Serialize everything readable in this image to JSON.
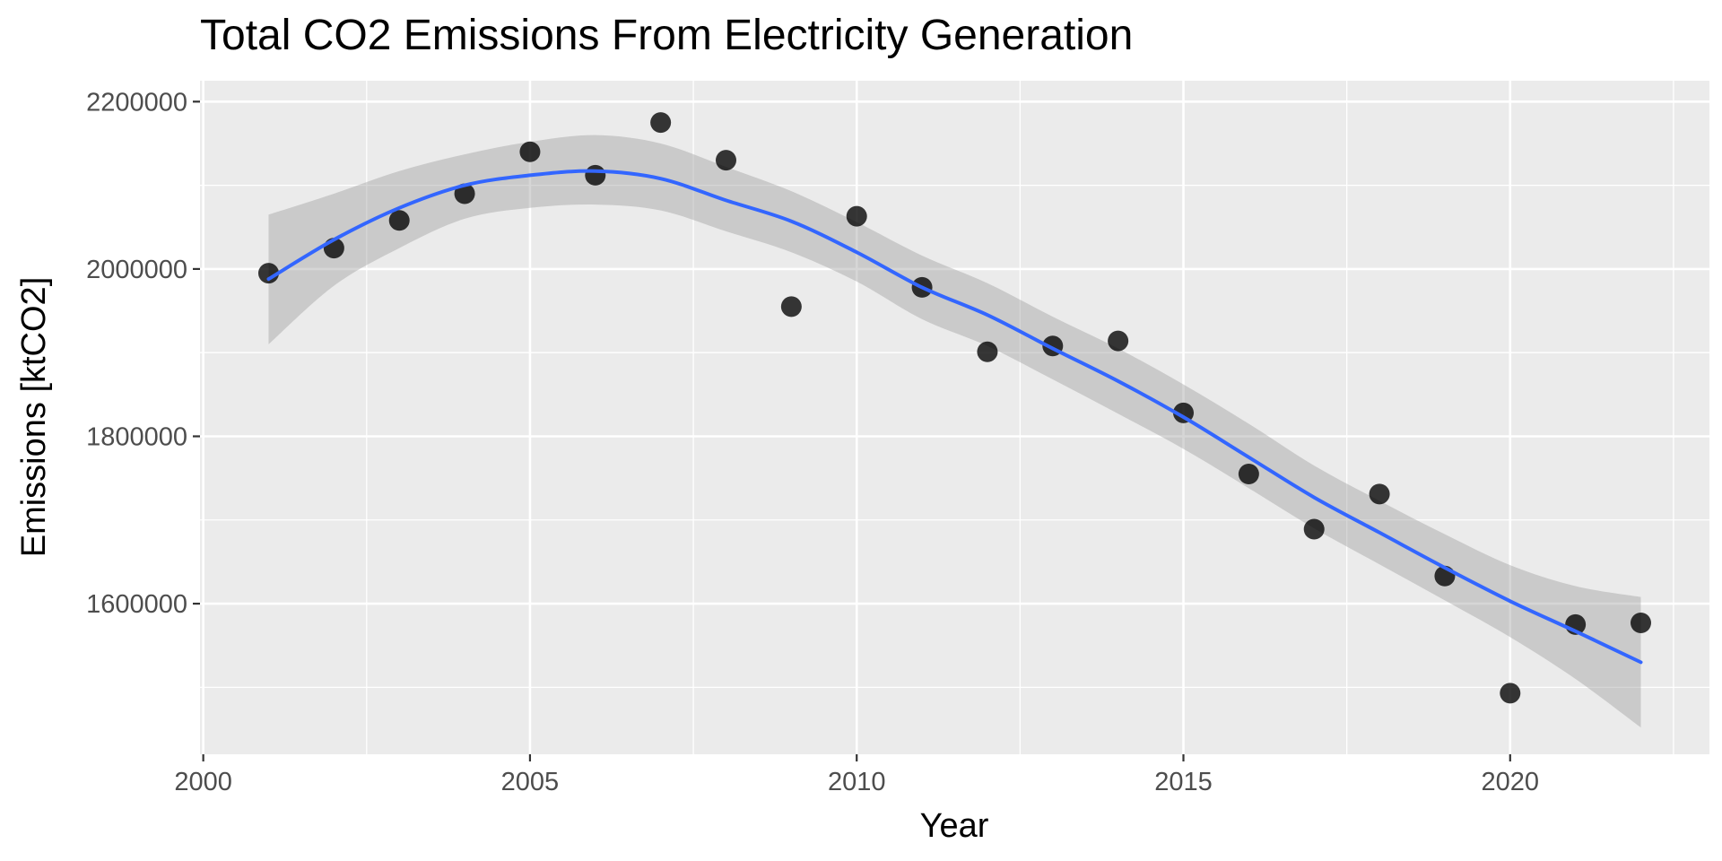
{
  "colors": {
    "panel_background": "#ebebeb",
    "grid": "#ffffff",
    "point": "#000000",
    "smooth_line": "#3366ff",
    "ribbon": "#999999",
    "tick_text": "#4d4d4d"
  },
  "chart_data": {
    "type": "scatter",
    "title": "Total CO2 Emissions From Electricity Generation",
    "xlabel": "Year",
    "ylabel": "Emissions [ktCO2]",
    "xlim": [
      1999.95,
      2023.05
    ],
    "ylim": [
      1420000,
      2225000
    ],
    "x_ticks": [
      2000,
      2005,
      2010,
      2015,
      2020
    ],
    "y_ticks": [
      1600000,
      1800000,
      2000000,
      2200000
    ],
    "grid": true,
    "legend": "none",
    "points": {
      "x": [
        2001,
        2002,
        2003,
        2004,
        2005,
        2006,
        2007,
        2008,
        2009,
        2010,
        2011,
        2012,
        2013,
        2014,
        2015,
        2016,
        2017,
        2018,
        2019,
        2020,
        2021,
        2022
      ],
      "y": [
        1995000,
        2025000,
        2058000,
        2090000,
        2140000,
        2112000,
        2175000,
        2130000,
        1955000,
        2063000,
        1978000,
        1901000,
        1908000,
        1914000,
        1828000,
        1755000,
        1689000,
        1731000,
        1633000,
        1493000,
        1575000,
        1577000
      ]
    },
    "smooth_fit": {
      "x": [
        2001,
        2002,
        2003,
        2004,
        2005,
        2006,
        2007,
        2008,
        2009,
        2010,
        2011,
        2012,
        2013,
        2014,
        2015,
        2016,
        2017,
        2018,
        2019,
        2020,
        2021,
        2022
      ],
      "y": [
        1988000,
        2035000,
        2073000,
        2100000,
        2112000,
        2117000,
        2108000,
        2082000,
        2057000,
        2020000,
        1978000,
        1945000,
        1905000,
        1866000,
        1823000,
        1775000,
        1727000,
        1685000,
        1643000,
        1603000,
        1567000,
        1530000
      ],
      "lower": [
        1910000,
        1980000,
        2025000,
        2060000,
        2073000,
        2077000,
        2070000,
        2045000,
        2020000,
        1985000,
        1940000,
        1908000,
        1868000,
        1827000,
        1785000,
        1738000,
        1690000,
        1647000,
        1604000,
        1560000,
        1510000,
        1452000
      ],
      "upper": [
        2065000,
        2090000,
        2117000,
        2137000,
        2152000,
        2160000,
        2150000,
        2122000,
        2093000,
        2056000,
        2016000,
        1983000,
        1943000,
        1905000,
        1862000,
        1815000,
        1765000,
        1723000,
        1683000,
        1646000,
        1621000,
        1608000
      ]
    }
  }
}
